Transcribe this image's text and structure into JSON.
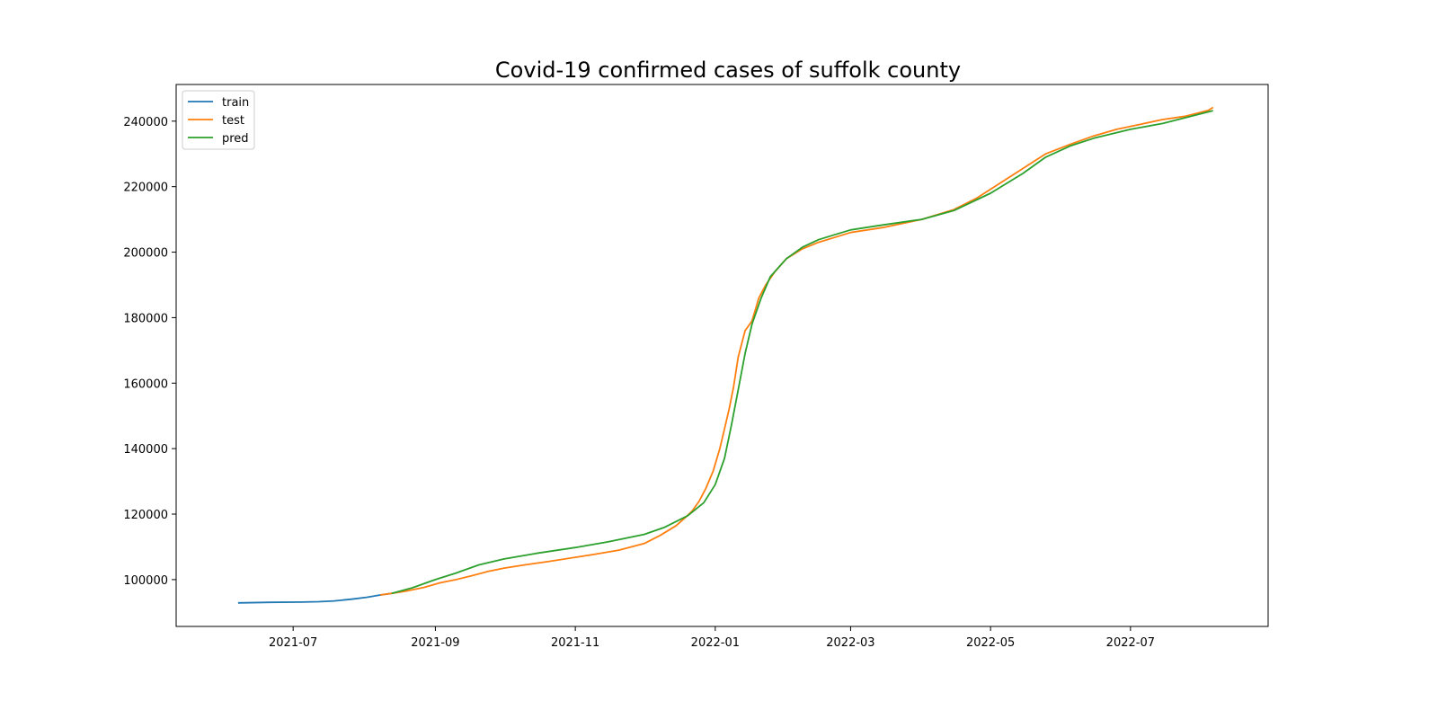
{
  "chart_data": {
    "type": "line",
    "title": "Covid-19 confirmed cases of suffolk county",
    "xlabel": "",
    "ylabel": "",
    "xlim": [
      "2021-05-11",
      "2022-08-30"
    ],
    "ylim": [
      85700,
      251200
    ],
    "x_ticks": [
      "2021-07",
      "2021-09",
      "2021-11",
      "2022-01",
      "2022-03",
      "2022-05",
      "2022-07"
    ],
    "y_ticks": [
      100000,
      120000,
      140000,
      160000,
      180000,
      200000,
      220000,
      240000
    ],
    "grid": false,
    "legend_position": "upper-left",
    "series": [
      {
        "name": "train",
        "color": "#1f77b4",
        "points": [
          [
            "2021-06-07",
            92900
          ],
          [
            "2021-06-21",
            93050
          ],
          [
            "2021-07-05",
            93150
          ],
          [
            "2021-07-12",
            93250
          ],
          [
            "2021-07-19",
            93500
          ],
          [
            "2021-07-26",
            94000
          ],
          [
            "2021-08-02",
            94600
          ],
          [
            "2021-08-08",
            95300
          ],
          [
            "2021-08-13",
            95800
          ]
        ]
      },
      {
        "name": "test",
        "color": "#ff7f0e",
        "points": [
          [
            "2021-08-08",
            95300
          ],
          [
            "2021-08-13",
            95800
          ],
          [
            "2021-08-20",
            96600
          ],
          [
            "2021-08-27",
            97600
          ],
          [
            "2021-09-03",
            99000
          ],
          [
            "2021-09-10",
            100000
          ],
          [
            "2021-09-17",
            101200
          ],
          [
            "2021-09-24",
            102500
          ],
          [
            "2021-10-01",
            103500
          ],
          [
            "2021-10-10",
            104500
          ],
          [
            "2021-10-20",
            105500
          ],
          [
            "2021-11-01",
            106800
          ],
          [
            "2021-11-10",
            107800
          ],
          [
            "2021-11-20",
            109000
          ],
          [
            "2021-12-01",
            111000
          ],
          [
            "2021-12-08",
            113500
          ],
          [
            "2021-12-15",
            116500
          ],
          [
            "2021-12-19",
            119000
          ],
          [
            "2021-12-22",
            121000
          ],
          [
            "2021-12-25",
            124000
          ],
          [
            "2021-12-28",
            128000
          ],
          [
            "2021-12-31",
            133000
          ],
          [
            "2022-01-03",
            140000
          ],
          [
            "2022-01-05",
            146000
          ],
          [
            "2022-01-07",
            152000
          ],
          [
            "2022-01-09",
            159000
          ],
          [
            "2022-01-11",
            168000
          ],
          [
            "2022-01-14",
            176000
          ],
          [
            "2022-01-17",
            179000
          ],
          [
            "2022-01-20",
            186000
          ],
          [
            "2022-01-23",
            190000
          ],
          [
            "2022-01-27",
            194000
          ],
          [
            "2022-02-01",
            198000
          ],
          [
            "2022-02-08",
            201000
          ],
          [
            "2022-02-15",
            203000
          ],
          [
            "2022-02-22",
            204500
          ],
          [
            "2022-03-01",
            206000
          ],
          [
            "2022-03-15",
            207500
          ],
          [
            "2022-04-01",
            210000
          ],
          [
            "2022-04-15",
            213000
          ],
          [
            "2022-04-25",
            216500
          ],
          [
            "2022-05-05",
            221000
          ],
          [
            "2022-05-15",
            225500
          ],
          [
            "2022-05-25",
            230000
          ],
          [
            "2022-06-05",
            233000
          ],
          [
            "2022-06-15",
            235500
          ],
          [
            "2022-06-25",
            237500
          ],
          [
            "2022-07-05",
            239000
          ],
          [
            "2022-07-15",
            240500
          ],
          [
            "2022-07-25",
            241500
          ],
          [
            "2022-08-04",
            243300
          ],
          [
            "2022-08-06",
            244200
          ]
        ]
      },
      {
        "name": "pred",
        "color": "#2ca02c",
        "points": [
          [
            "2021-08-13",
            95800
          ],
          [
            "2021-08-22",
            97500
          ],
          [
            "2021-09-01",
            100000
          ],
          [
            "2021-09-10",
            102000
          ],
          [
            "2021-09-20",
            104500
          ],
          [
            "2021-10-01",
            106300
          ],
          [
            "2021-10-15",
            108000
          ],
          [
            "2021-11-01",
            109800
          ],
          [
            "2021-11-15",
            111500
          ],
          [
            "2021-12-01",
            113800
          ],
          [
            "2021-12-10",
            116000
          ],
          [
            "2021-12-20",
            119500
          ],
          [
            "2021-12-27",
            123500
          ],
          [
            "2022-01-01",
            129000
          ],
          [
            "2022-01-05",
            137000
          ],
          [
            "2022-01-08",
            147000
          ],
          [
            "2022-01-11",
            158000
          ],
          [
            "2022-01-14",
            169000
          ],
          [
            "2022-01-17",
            178000
          ],
          [
            "2022-01-21",
            186000
          ],
          [
            "2022-01-25",
            192500
          ],
          [
            "2022-02-01",
            198000
          ],
          [
            "2022-02-08",
            201500
          ],
          [
            "2022-02-15",
            203800
          ],
          [
            "2022-02-22",
            205300
          ],
          [
            "2022-03-01",
            206800
          ],
          [
            "2022-03-15",
            208300
          ],
          [
            "2022-04-01",
            210000
          ],
          [
            "2022-04-15",
            212700
          ],
          [
            "2022-05-01",
            218000
          ],
          [
            "2022-05-15",
            224000
          ],
          [
            "2022-05-25",
            229000
          ],
          [
            "2022-06-05",
            232500
          ],
          [
            "2022-06-15",
            234800
          ],
          [
            "2022-07-01",
            237500
          ],
          [
            "2022-07-15",
            239300
          ],
          [
            "2022-08-06",
            243200
          ]
        ]
      }
    ]
  }
}
